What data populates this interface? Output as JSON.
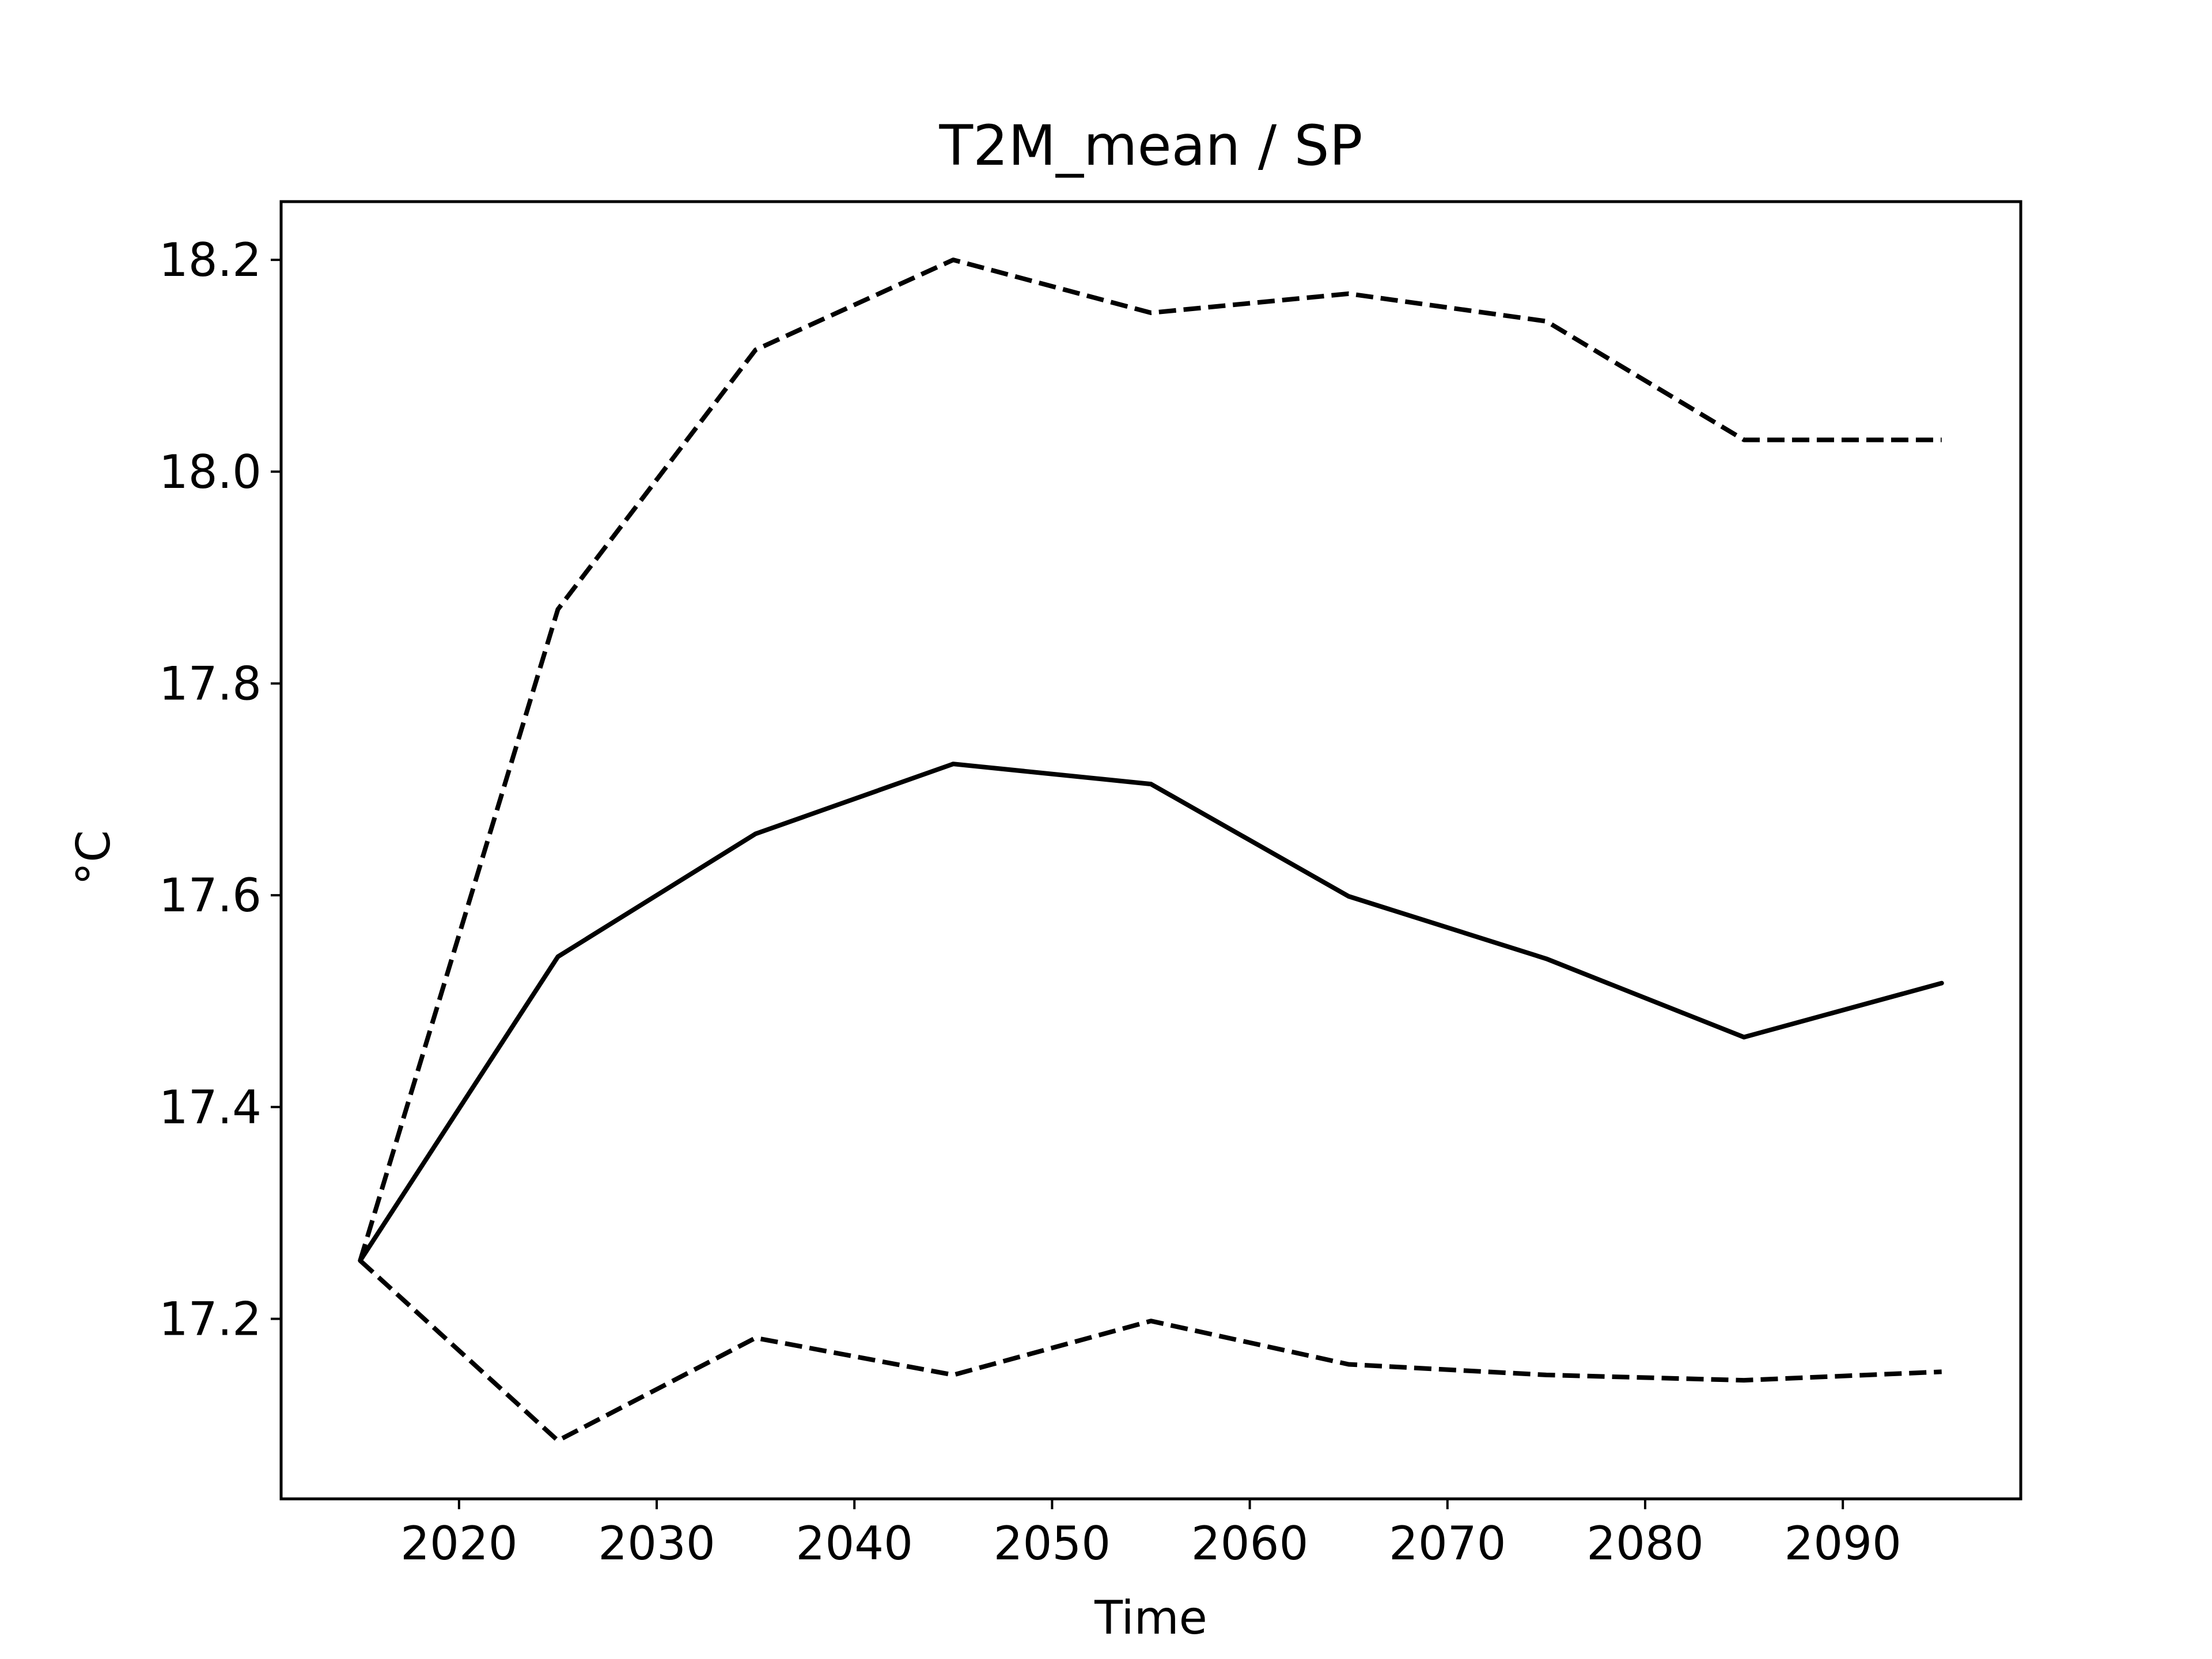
{
  "chart_data": {
    "type": "line",
    "title": "T2M_mean / SP",
    "xlabel": "Time",
    "ylabel": "°C",
    "x": [
      2015,
      2025,
      2035,
      2045,
      2055,
      2065,
      2075,
      2085,
      2095
    ],
    "xlim": [
      2011,
      2099
    ],
    "ylim": [
      17.03,
      18.255
    ],
    "xticks": [
      2020,
      2030,
      2040,
      2050,
      2060,
      2070,
      2080,
      2090
    ],
    "xtick_labels": [
      "2020",
      "2030",
      "2040",
      "2050",
      "2060",
      "2070",
      "2080",
      "2090"
    ],
    "yticks": [
      17.2,
      17.4,
      17.6,
      17.8,
      18.0,
      18.2
    ],
    "ytick_labels": [
      "17.2",
      "17.4",
      "17.6",
      "17.8",
      "18.0",
      "18.2"
    ],
    "grid": false,
    "series": [
      {
        "style": "dashed",
        "color": "#000000",
        "values": [
          17.255,
          17.87,
          18.115,
          18.2,
          18.15,
          18.168,
          18.142,
          18.03,
          18.03
        ]
      },
      {
        "style": "solid",
        "color": "#000000",
        "values": [
          17.255,
          17.542,
          17.658,
          17.724,
          17.705,
          17.599,
          17.54,
          17.466,
          17.517
        ]
      },
      {
        "style": "dashed",
        "color": "#000000",
        "values": [
          17.255,
          17.085,
          17.182,
          17.147,
          17.198,
          17.157,
          17.147,
          17.142,
          17.15
        ]
      }
    ]
  }
}
